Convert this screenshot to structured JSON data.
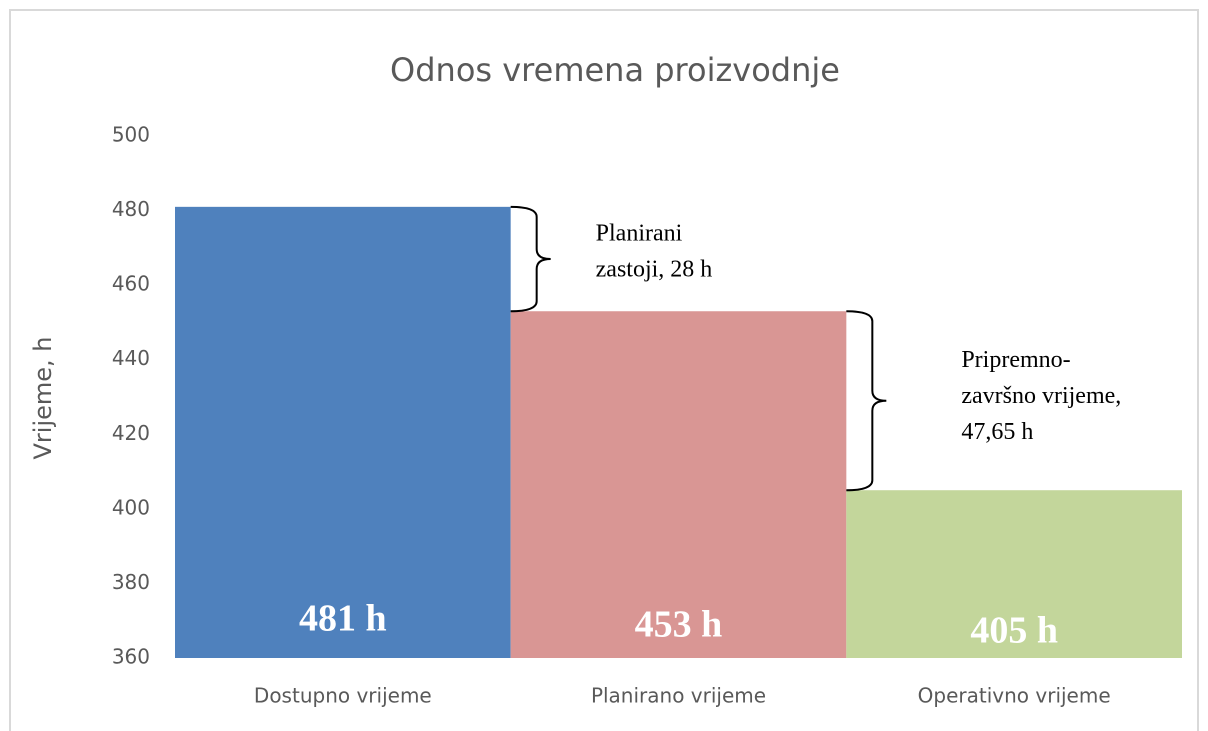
{
  "chart_data": {
    "type": "bar",
    "title": "Odnos vremena proizvodnje",
    "y_label": "Vrijeme, h",
    "categories": [
      "Dostupno vrijeme",
      "Planirano vrijeme",
      "Operativno vrijeme"
    ],
    "values": [
      481,
      453,
      405
    ],
    "value_labels": [
      "481 h",
      "453 h",
      "405 h"
    ],
    "colors": [
      "#4f81bd",
      "#d99694",
      "#c3d69b"
    ],
    "ylim": [
      360,
      500
    ],
    "yticks": [
      360,
      380,
      400,
      420,
      440,
      460,
      480,
      500
    ],
    "grid": false,
    "annotations": [
      {
        "lines": [
          "Planirani",
          "zastoji, 28 h"
        ]
      },
      {
        "lines": [
          "Pripremno-",
          "završno vrijeme,",
          "47,65 h"
        ]
      }
    ]
  }
}
